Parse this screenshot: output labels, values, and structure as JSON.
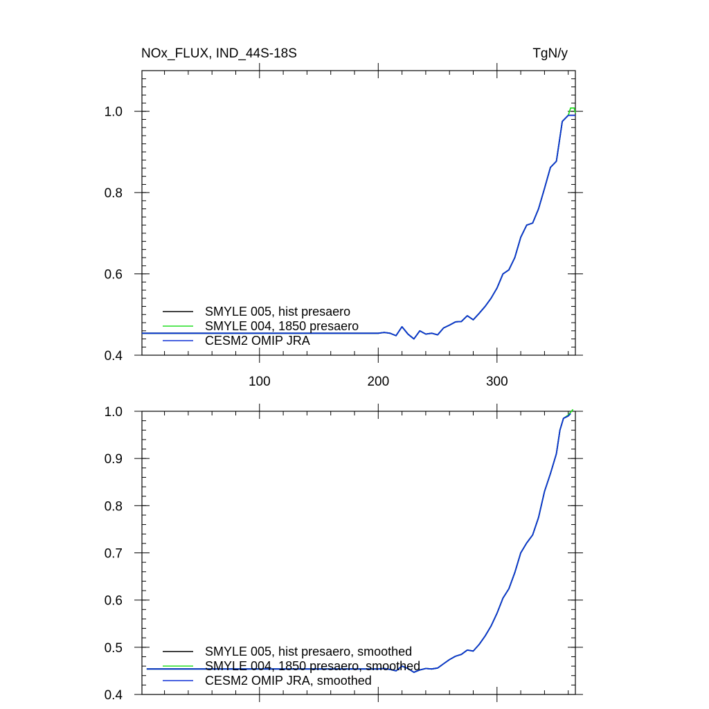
{
  "header": {
    "title": "NOx_FLUX, IND_44S-18S",
    "units": "TgN/y"
  },
  "colors": {
    "smyle005": "#000000",
    "smyle004": "#22dd22",
    "cesm2": "#0b2fd6"
  },
  "chart_data": [
    {
      "type": "line",
      "title": "NOx_FLUX, IND_44S-18S",
      "units": "TgN/y",
      "xlim": [
        1,
        366
      ],
      "ylim": [
        0.4,
        1.1
      ],
      "x_ticks": [
        100,
        200,
        300
      ],
      "x_tick_labels": [
        "100",
        "200",
        "300"
      ],
      "y_ticks": [
        0.4,
        0.6,
        0.8,
        1.0
      ],
      "y_tick_labels": [
        "0.4",
        "0.6",
        "0.8",
        "1.0"
      ],
      "grid": false,
      "legend_position": "bottom-left",
      "series": [
        {
          "name": "SMYLE 005, hist presaero",
          "color_key": "smyle005",
          "x": [
            1,
            200,
            205,
            210,
            215,
            220,
            225,
            230,
            235,
            240,
            245,
            250,
            255,
            260,
            265,
            270,
            275,
            280,
            285,
            290,
            295,
            300,
            305,
            310,
            315,
            320,
            325,
            330,
            335,
            340,
            345,
            350,
            355,
            360,
            366
          ],
          "y": [
            0.454,
            0.454,
            0.456,
            0.454,
            0.448,
            0.47,
            0.452,
            0.44,
            0.46,
            0.452,
            0.454,
            0.45,
            0.467,
            0.474,
            0.482,
            0.483,
            0.497,
            0.487,
            0.503,
            0.52,
            0.54,
            0.565,
            0.6,
            0.61,
            0.64,
            0.69,
            0.72,
            0.725,
            0.76,
            0.81,
            0.862,
            0.877,
            0.975,
            0.99,
            0.99
          ]
        },
        {
          "name": "SMYLE 004, 1850 presaero",
          "color_key": "smyle004",
          "x": [
            1,
            200,
            205,
            210,
            215,
            220,
            225,
            230,
            235,
            240,
            245,
            250,
            255,
            260,
            265,
            270,
            275,
            280,
            285,
            290,
            295,
            300,
            305,
            310,
            315,
            320,
            325,
            330,
            335,
            340,
            345,
            350,
            355,
            360,
            362,
            365,
            366
          ],
          "y": [
            0.454,
            0.454,
            0.456,
            0.454,
            0.448,
            0.47,
            0.452,
            0.44,
            0.46,
            0.452,
            0.454,
            0.45,
            0.467,
            0.474,
            0.482,
            0.483,
            0.497,
            0.487,
            0.503,
            0.52,
            0.54,
            0.565,
            0.6,
            0.61,
            0.64,
            0.69,
            0.72,
            0.725,
            0.76,
            0.81,
            0.862,
            0.877,
            0.975,
            0.99,
            1.008,
            1.008,
            0.996
          ]
        },
        {
          "name": "CESM2 OMIP JRA",
          "color_key": "cesm2",
          "x": [
            1,
            200,
            205,
            210,
            215,
            220,
            225,
            230,
            235,
            240,
            245,
            250,
            255,
            260,
            265,
            270,
            275,
            280,
            285,
            290,
            295,
            300,
            305,
            310,
            315,
            320,
            325,
            330,
            335,
            340,
            345,
            350,
            355,
            360,
            366
          ],
          "y": [
            0.454,
            0.454,
            0.456,
            0.454,
            0.448,
            0.47,
            0.452,
            0.44,
            0.46,
            0.452,
            0.454,
            0.45,
            0.467,
            0.474,
            0.482,
            0.483,
            0.497,
            0.487,
            0.503,
            0.52,
            0.54,
            0.565,
            0.6,
            0.61,
            0.64,
            0.69,
            0.72,
            0.725,
            0.76,
            0.81,
            0.862,
            0.877,
            0.975,
            0.99,
            0.99
          ]
        }
      ]
    },
    {
      "type": "line",
      "xlim": [
        1,
        366
      ],
      "ylim": [
        0.4,
        1.0
      ],
      "x_ticks": [
        100,
        200,
        300
      ],
      "y_ticks": [
        0.4,
        0.5,
        0.6,
        0.7,
        0.8,
        0.9,
        1.0
      ],
      "y_tick_labels": [
        "0.4",
        "0.5",
        "0.6",
        "0.7",
        "0.8",
        "0.9",
        "1.0"
      ],
      "grid": false,
      "legend_position": "bottom-left",
      "series": [
        {
          "name": "SMYLE 005, hist presaero, smoothed",
          "color_key": "smyle005",
          "x": [
            5,
            200,
            205,
            210,
            215,
            220,
            225,
            230,
            235,
            240,
            245,
            250,
            255,
            260,
            265,
            270,
            275,
            280,
            285,
            290,
            295,
            300,
            305,
            310,
            315,
            320,
            325,
            330,
            335,
            340,
            345,
            350,
            353,
            356,
            360,
            362
          ],
          "y": [
            0.454,
            0.454,
            0.455,
            0.453,
            0.45,
            0.46,
            0.455,
            0.447,
            0.452,
            0.455,
            0.454,
            0.456,
            0.465,
            0.474,
            0.481,
            0.485,
            0.494,
            0.492,
            0.506,
            0.524,
            0.545,
            0.572,
            0.604,
            0.624,
            0.658,
            0.7,
            0.721,
            0.738,
            0.775,
            0.83,
            0.868,
            0.91,
            0.96,
            0.985,
            0.99,
            0.995
          ]
        },
        {
          "name": "SMYLE 004, 1850 presaero, smoothed",
          "color_key": "smyle004",
          "x": [
            5,
            200,
            205,
            210,
            215,
            220,
            225,
            230,
            235,
            240,
            245,
            250,
            255,
            260,
            265,
            270,
            275,
            280,
            285,
            290,
            295,
            300,
            305,
            310,
            315,
            320,
            325,
            330,
            335,
            340,
            345,
            350,
            353,
            356,
            360,
            362,
            364
          ],
          "y": [
            0.454,
            0.454,
            0.455,
            0.453,
            0.45,
            0.46,
            0.455,
            0.447,
            0.452,
            0.455,
            0.454,
            0.456,
            0.465,
            0.474,
            0.481,
            0.485,
            0.494,
            0.492,
            0.506,
            0.524,
            0.545,
            0.572,
            0.604,
            0.624,
            0.658,
            0.7,
            0.721,
            0.738,
            0.775,
            0.83,
            0.868,
            0.91,
            0.96,
            0.985,
            0.992,
            0.998,
            1.004
          ]
        },
        {
          "name": "CESM2 OMIP JRA, smoothed",
          "color_key": "cesm2",
          "x": [
            5,
            200,
            205,
            210,
            215,
            220,
            225,
            230,
            235,
            240,
            245,
            250,
            255,
            260,
            265,
            270,
            275,
            280,
            285,
            290,
            295,
            300,
            305,
            310,
            315,
            320,
            325,
            330,
            335,
            340,
            345,
            350,
            353,
            356,
            360,
            362
          ],
          "y": [
            0.454,
            0.454,
            0.455,
            0.453,
            0.45,
            0.46,
            0.455,
            0.447,
            0.452,
            0.455,
            0.454,
            0.456,
            0.465,
            0.474,
            0.481,
            0.485,
            0.494,
            0.492,
            0.506,
            0.524,
            0.545,
            0.572,
            0.604,
            0.624,
            0.658,
            0.7,
            0.721,
            0.738,
            0.775,
            0.83,
            0.868,
            0.91,
            0.96,
            0.985,
            0.99,
            0.995
          ]
        }
      ]
    }
  ]
}
